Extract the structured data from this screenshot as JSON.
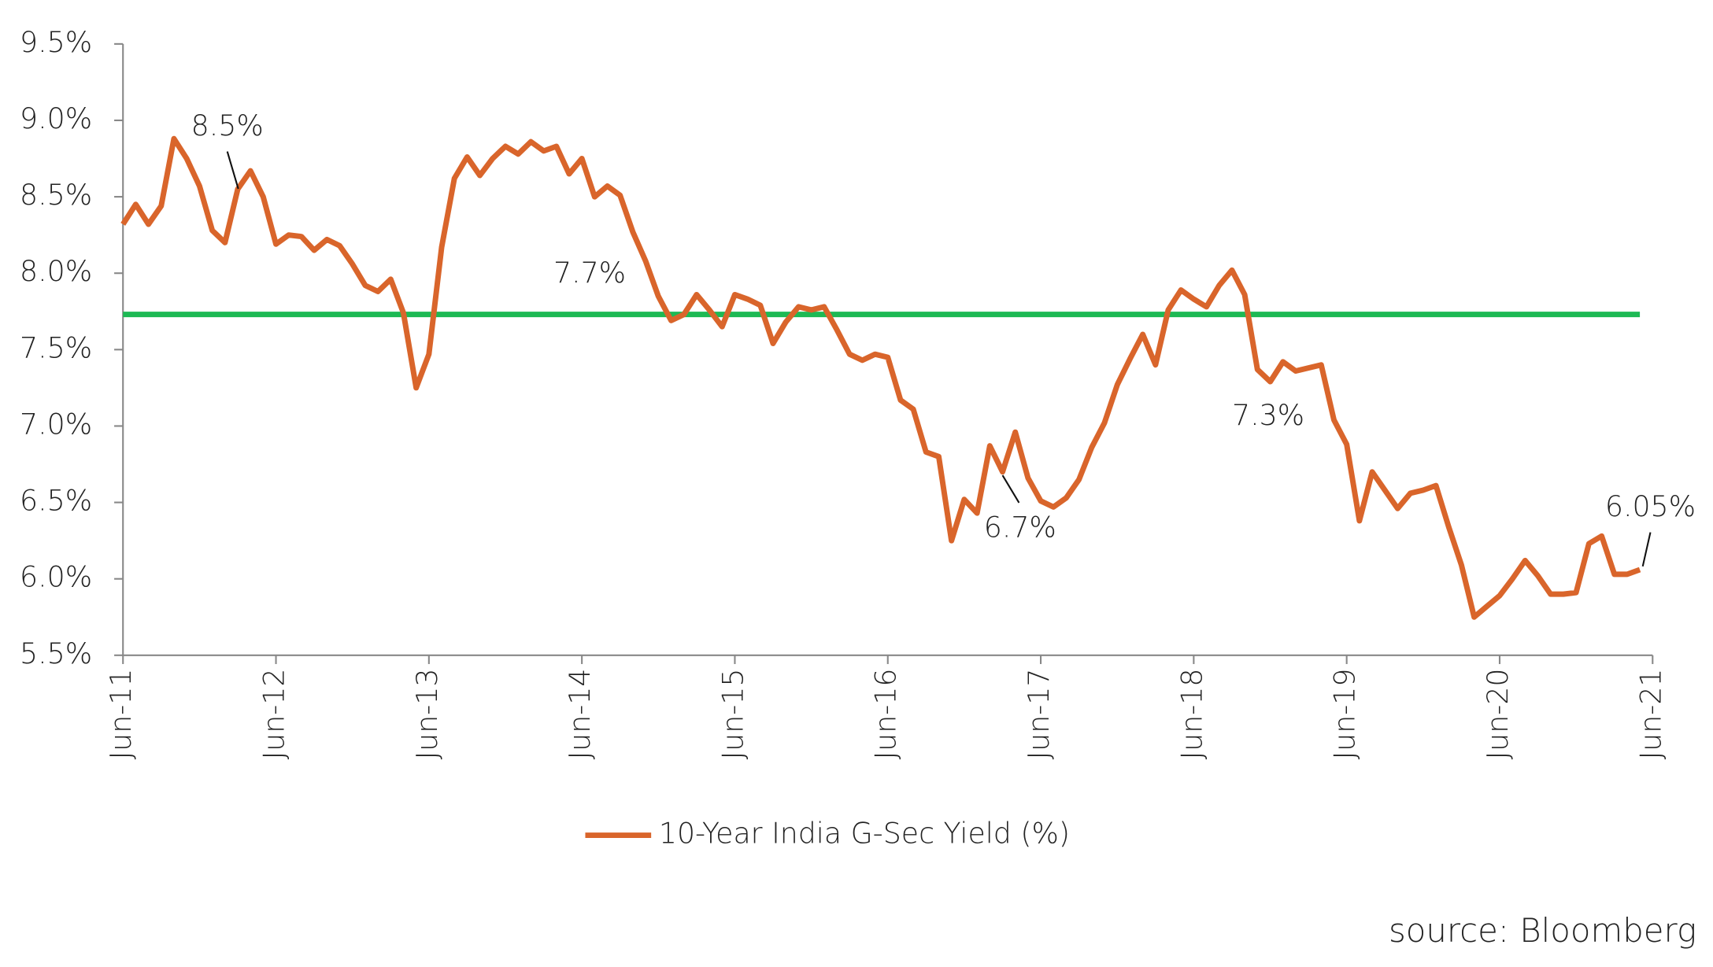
{
  "chart_data": {
    "type": "line",
    "categories": [
      "Jun-11",
      null,
      null,
      null,
      null,
      null,
      null,
      null,
      null,
      null,
      null,
      null,
      "Jun-12",
      null,
      null,
      null,
      null,
      null,
      null,
      null,
      null,
      null,
      null,
      null,
      "Jun-13",
      null,
      null,
      null,
      null,
      null,
      null,
      null,
      null,
      null,
      null,
      null,
      "Jun-14",
      null,
      null,
      null,
      null,
      null,
      null,
      null,
      null,
      null,
      null,
      null,
      "Jun-15",
      null,
      null,
      null,
      null,
      null,
      null,
      null,
      null,
      null,
      null,
      null,
      "Jun-16",
      null,
      null,
      null,
      null,
      null,
      null,
      null,
      null,
      null,
      null,
      null,
      "Jun-17",
      null,
      null,
      null,
      null,
      null,
      null,
      null,
      null,
      null,
      null,
      null,
      "Jun-18",
      null,
      null,
      null,
      null,
      null,
      null,
      null,
      null,
      null,
      null,
      null,
      "Jun-19",
      null,
      null,
      null,
      null,
      null,
      null,
      null,
      null,
      null,
      null,
      null,
      "Jun-20",
      null,
      null,
      null,
      null,
      null,
      null,
      null,
      null,
      null,
      null,
      null,
      "Jun-21"
    ],
    "series": [
      {
        "name": "10-Year India G-Sec Yield (%)",
        "color": "#d9652b",
        "values": [
          8.32,
          8.45,
          8.32,
          8.44,
          8.88,
          8.75,
          8.57,
          8.28,
          8.2,
          8.55,
          8.67,
          8.5,
          8.19,
          8.25,
          8.24,
          8.15,
          8.22,
          8.18,
          8.06,
          7.92,
          7.88,
          7.96,
          7.74,
          7.25,
          7.47,
          8.17,
          8.62,
          8.76,
          8.64,
          8.75,
          8.83,
          8.78,
          8.86,
          8.8,
          8.83,
          8.65,
          8.75,
          8.5,
          8.57,
          8.51,
          8.27,
          8.08,
          7.85,
          7.69,
          7.73,
          7.86,
          7.76,
          7.65,
          7.86,
          7.83,
          7.79,
          7.54,
          7.68,
          7.78,
          7.76,
          7.78,
          7.63,
          7.47,
          7.43,
          7.47,
          7.45,
          7.17,
          7.11,
          6.83,
          6.8,
          6.25,
          6.52,
          6.43,
          6.87,
          6.7,
          6.96,
          6.66,
          6.51,
          6.47,
          6.53,
          6.65,
          6.86,
          7.02,
          7.27,
          7.44,
          7.6,
          7.4,
          7.76,
          7.89,
          7.83,
          7.78,
          7.92,
          8.02,
          7.86,
          7.37,
          7.29,
          7.42,
          7.36,
          7.38,
          7.4,
          7.04,
          6.88,
          6.38,
          6.7,
          6.58,
          6.46,
          6.56,
          6.58,
          6.61,
          6.34,
          6.09,
          5.75,
          5.82,
          5.89,
          6.0,
          6.12,
          6.02,
          5.9,
          5.9,
          5.91,
          6.23,
          6.28,
          6.03,
          6.03,
          6.06,
          null
        ]
      }
    ],
    "reference_line": {
      "value": 7.73,
      "color": "#1db954"
    },
    "annotations": [
      "8.5%",
      "7.7%",
      "6.7%",
      "7.3%",
      "6.05%"
    ],
    "ylim": [
      5.5,
      9.5
    ],
    "yticks": [
      {
        "value": 5.5,
        "label": "5.5%"
      },
      {
        "value": 6.0,
        "label": "6.0%"
      },
      {
        "value": 6.5,
        "label": "6.5%"
      },
      {
        "value": 7.0,
        "label": "7.0%"
      },
      {
        "value": 7.5,
        "label": "7.5%"
      },
      {
        "value": 8.0,
        "label": "8.0%"
      },
      {
        "value": 8.5,
        "label": "8.5%"
      },
      {
        "value": 9.0,
        "label": "9.0%"
      },
      {
        "value": 9.5,
        "label": "9.5%"
      }
    ],
    "legend": "bottom",
    "source": "source: Bloomberg"
  }
}
